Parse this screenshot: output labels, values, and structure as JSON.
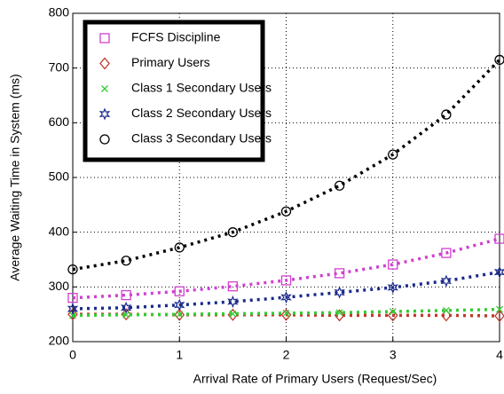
{
  "chart_data": {
    "type": "line",
    "xlabel": "Arrival Rate of Primary Users (Request/Sec)",
    "ylabel": "Average Waiting Time in System (ms)",
    "x": [
      0,
      0.5,
      1,
      1.5,
      2,
      2.5,
      3,
      3.5,
      4
    ],
    "series": [
      {
        "name": "FCFS Discipline",
        "color": "#d040d0",
        "marker": "square",
        "values": [
          280,
          285,
          292,
          301,
          312,
          325,
          341,
          362,
          388
        ]
      },
      {
        "name": "Primary Users",
        "color": "#c0392b",
        "marker": "diamond",
        "values": [
          250,
          250,
          249,
          249,
          249,
          248,
          248,
          248,
          247
        ]
      },
      {
        "name": "Class 1 Secondary Users",
        "color": "#33cc33",
        "marker": "x",
        "values": [
          248,
          249,
          250,
          251,
          252,
          253,
          255,
          257,
          259
        ]
      },
      {
        "name": "Class 2 Secondary Users",
        "color": "#1a2a8c",
        "marker": "star",
        "values": [
          260,
          262,
          267,
          273,
          281,
          290,
          299,
          311,
          327
        ]
      },
      {
        "name": "Class 3 Secondary Users",
        "color": "#000000",
        "marker": "circle",
        "values": [
          332,
          348,
          372,
          400,
          438,
          485,
          542,
          615,
          715
        ]
      }
    ],
    "xlim": [
      0,
      4
    ],
    "xticks": [
      0,
      1,
      2,
      3,
      4
    ],
    "ylim": [
      200,
      800
    ],
    "yticks": [
      200,
      300,
      400,
      500,
      600,
      700,
      800
    ],
    "grid": true,
    "legend": "upper left"
  }
}
